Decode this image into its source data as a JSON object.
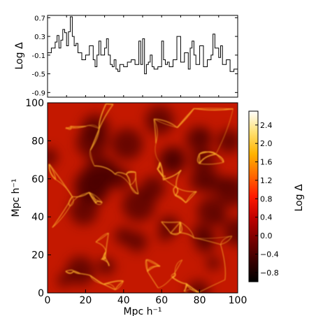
{
  "chart_data": [
    {
      "type": "line",
      "ylabel": "Log Δ",
      "xlim": [
        0,
        100
      ],
      "ylim": [
        -1.0,
        0.75
      ],
      "yticks": [
        "0.7",
        "0.3",
        "-0.1",
        "-0.5",
        "-0.9"
      ],
      "ytick_values": [
        0.7,
        0.3,
        -0.1,
        -0.5,
        -0.9
      ],
      "x": [
        0,
        2,
        4,
        5,
        6,
        7,
        8,
        9,
        10,
        11,
        12,
        13,
        14,
        15,
        16,
        18,
        20,
        22,
        24,
        25,
        26,
        27,
        28,
        30,
        31,
        32,
        33,
        34,
        35,
        36,
        37,
        38,
        40,
        42,
        44,
        46,
        48,
        49,
        50,
        51,
        52,
        53,
        54,
        55,
        56,
        58,
        60,
        61,
        62,
        63,
        64,
        66,
        68,
        70,
        72,
        74,
        75,
        76,
        77,
        78,
        80,
        82,
        84,
        86,
        87,
        88,
        90,
        91,
        92,
        94,
        96,
        98,
        100
      ],
      "y": [
        -0.05,
        0.05,
        0.18,
        0.32,
        0.05,
        0.22,
        0.45,
        0.38,
        0.1,
        0.4,
        0.72,
        0.3,
        0.1,
        0.15,
        -0.05,
        -0.2,
        -0.1,
        0.1,
        -0.2,
        -0.35,
        -0.1,
        0.2,
        -0.1,
        0.05,
        0.25,
        -0.1,
        -0.3,
        -0.35,
        -0.2,
        -0.4,
        -0.45,
        -0.3,
        -0.35,
        -0.25,
        -0.2,
        -0.3,
        0.2,
        -0.3,
        0.25,
        -0.5,
        -0.3,
        -0.25,
        -0.1,
        -0.35,
        -0.4,
        -0.35,
        0.2,
        -0.2,
        -0.3,
        -0.25,
        -0.35,
        -0.2,
        0.3,
        -0.25,
        -0.05,
        -0.4,
        0.05,
        0.2,
        -0.1,
        -0.3,
        0.1,
        -0.35,
        -0.2,
        -0.1,
        0.35,
        0.05,
        -0.15,
        0.1,
        -0.3,
        -0.2,
        -0.45,
        -0.4,
        -0.35
      ]
    },
    {
      "type": "heatmap",
      "xlabel": "Mpc h⁻¹",
      "ylabel": "Mpc h⁻¹",
      "xlim": [
        0,
        100
      ],
      "ylim": [
        0,
        100
      ],
      "xticks": [
        "0",
        "20",
        "40",
        "60",
        "80",
        "100"
      ],
      "xtick_values": [
        0,
        20,
        40,
        60,
        80,
        100
      ],
      "yticks": [
        "0",
        "20",
        "40",
        "60",
        "80",
        "100"
      ],
      "ytick_values": [
        0,
        20,
        40,
        60,
        80,
        100
      ],
      "colorbar": {
        "label": "Log Δ",
        "range": [
          -1.0,
          2.7
        ],
        "ticks": [
          "2.4",
          "2.0",
          "1.6",
          "1.2",
          "0.8",
          "0.4",
          "0.0",
          "−0.4",
          "−0.8"
        ],
        "tick_values": [
          2.4,
          2.0,
          1.6,
          1.2,
          0.8,
          0.4,
          0.0,
          -0.4,
          -0.8
        ],
        "colormap": [
          "#000000",
          "#3a0000",
          "#7a0000",
          "#c00000",
          "#ff1a00",
          "#ff6a00",
          "#ffb300",
          "#ffe070",
          "#ffffff"
        ]
      },
      "line_color": "#000000",
      "filament_color": "#ffb02a",
      "void_color": "#4a0000",
      "background_color": "#c41800"
    }
  ]
}
